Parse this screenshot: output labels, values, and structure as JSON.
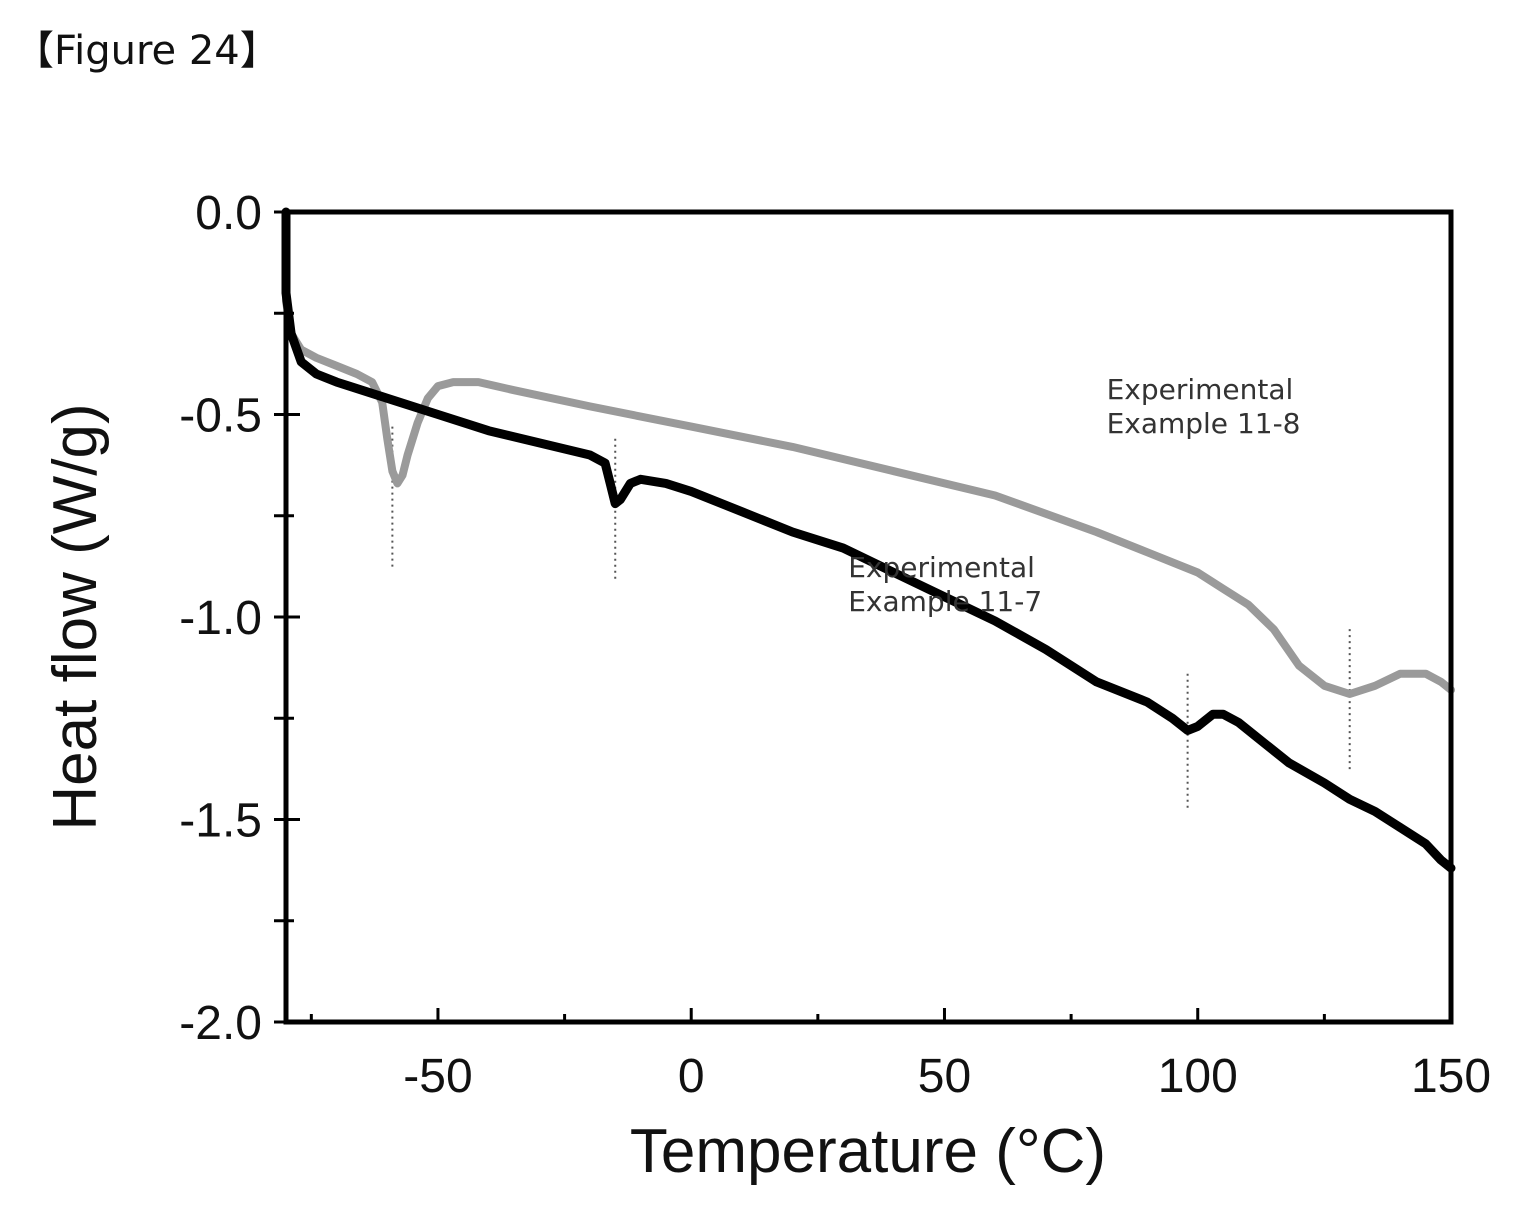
{
  "figure_caption": "【Figure 24】",
  "chart_data": {
    "type": "line",
    "xlabel": "Temperature (°C)",
    "ylabel": "Heat flow (W/g)",
    "xlim": [
      -80,
      150
    ],
    "ylim": [
      -2.0,
      0.0
    ],
    "x_ticks": [
      -50,
      0,
      50,
      100,
      150
    ],
    "y_ticks": [
      0.0,
      -0.5,
      -1.0,
      -1.5,
      -2.0
    ],
    "x_tick_labels": [
      "-50",
      "0",
      "50",
      "100",
      "150"
    ],
    "y_tick_labels": [
      "0.0",
      "-0.5",
      "-1.0",
      "-1.5",
      "-2.0"
    ],
    "grid": false,
    "series": [
      {
        "name": "Experimental Example 11-8",
        "color": "#9a9a9a",
        "points": [
          [
            -80,
            0.0
          ],
          [
            -80,
            -0.22
          ],
          [
            -79,
            -0.3
          ],
          [
            -77,
            -0.34
          ],
          [
            -74,
            -0.36
          ],
          [
            -70,
            -0.38
          ],
          [
            -66,
            -0.4
          ],
          [
            -63,
            -0.42
          ],
          [
            -61,
            -0.47
          ],
          [
            -60,
            -0.56
          ],
          [
            -59,
            -0.64
          ],
          [
            -58,
            -0.67
          ],
          [
            -57,
            -0.65
          ],
          [
            -56,
            -0.6
          ],
          [
            -54,
            -0.52
          ],
          [
            -52,
            -0.46
          ],
          [
            -50,
            -0.43
          ],
          [
            -47,
            -0.42
          ],
          [
            -42,
            -0.42
          ],
          [
            -35,
            -0.44
          ],
          [
            -20,
            -0.48
          ],
          [
            0,
            -0.53
          ],
          [
            20,
            -0.58
          ],
          [
            40,
            -0.64
          ],
          [
            60,
            -0.7
          ],
          [
            80,
            -0.79
          ],
          [
            90,
            -0.84
          ],
          [
            100,
            -0.89
          ],
          [
            105,
            -0.93
          ],
          [
            110,
            -0.97
          ],
          [
            115,
            -1.03
          ],
          [
            120,
            -1.12
          ],
          [
            125,
            -1.17
          ],
          [
            130,
            -1.19
          ],
          [
            135,
            -1.17
          ],
          [
            140,
            -1.14
          ],
          [
            145,
            -1.14
          ],
          [
            148,
            -1.16
          ],
          [
            150,
            -1.18
          ]
        ]
      },
      {
        "name": "Experimental Example 11-7",
        "color": "#000000",
        "points": [
          [
            -80,
            0.0
          ],
          [
            -80,
            -0.2
          ],
          [
            -79,
            -0.3
          ],
          [
            -77,
            -0.37
          ],
          [
            -74,
            -0.4
          ],
          [
            -70,
            -0.42
          ],
          [
            -60,
            -0.46
          ],
          [
            -50,
            -0.5
          ],
          [
            -40,
            -0.54
          ],
          [
            -30,
            -0.57
          ],
          [
            -20,
            -0.6
          ],
          [
            -17,
            -0.62
          ],
          [
            -16,
            -0.67
          ],
          [
            -15,
            -0.72
          ],
          [
            -14,
            -0.71
          ],
          [
            -12,
            -0.67
          ],
          [
            -10,
            -0.66
          ],
          [
            -5,
            -0.67
          ],
          [
            0,
            -0.69
          ],
          [
            10,
            -0.74
          ],
          [
            20,
            -0.79
          ],
          [
            30,
            -0.83
          ],
          [
            40,
            -0.89
          ],
          [
            50,
            -0.95
          ],
          [
            60,
            -1.01
          ],
          [
            70,
            -1.08
          ],
          [
            80,
            -1.16
          ],
          [
            90,
            -1.21
          ],
          [
            95,
            -1.25
          ],
          [
            98,
            -1.28
          ],
          [
            100,
            -1.27
          ],
          [
            103,
            -1.24
          ],
          [
            105,
            -1.24
          ],
          [
            108,
            -1.26
          ],
          [
            112,
            -1.3
          ],
          [
            118,
            -1.36
          ],
          [
            125,
            -1.41
          ],
          [
            130,
            -1.45
          ],
          [
            135,
            -1.48
          ],
          [
            140,
            -1.52
          ],
          [
            145,
            -1.56
          ],
          [
            148,
            -1.6
          ],
          [
            150,
            -1.62
          ]
        ]
      }
    ],
    "annotations": [
      {
        "lines": [
          "Experimental",
          "Example 11-8"
        ],
        "x": 82,
        "y": -0.56
      },
      {
        "lines": [
          "Experimental",
          "Example 11-7"
        ],
        "x": 31,
        "y": -1.0
      }
    ],
    "reference_lines": [
      {
        "x": -59,
        "y_top": -0.53,
        "y_bottom": -0.88
      },
      {
        "x": -15,
        "y_top": -0.56,
        "y_bottom": -0.91
      },
      {
        "x": 98,
        "y_top": -1.14,
        "y_bottom": -1.48
      },
      {
        "x": 130,
        "y_top": -1.03,
        "y_bottom": -1.38
      }
    ]
  }
}
